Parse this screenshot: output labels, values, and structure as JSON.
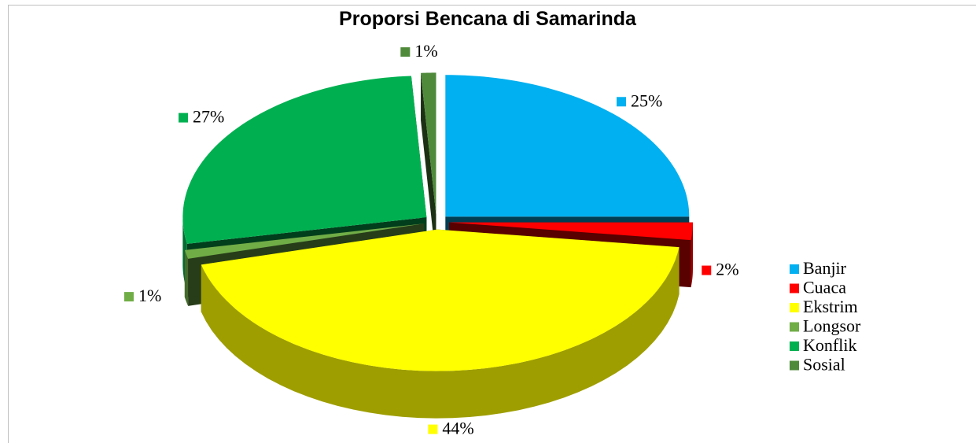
{
  "chart_data": {
    "type": "pie",
    "title": "Proporsi Bencana di Samarinda",
    "categories": [
      "Banjir",
      "Cuaca",
      "Ekstrim",
      "Longsor",
      "Konflik",
      "Sosial"
    ],
    "values": [
      25,
      2,
      44,
      1,
      27,
      1
    ],
    "value_labels": [
      "25%",
      "2%",
      "44%",
      "1%",
      "27%",
      "1%"
    ],
    "colors": [
      "#00b0f0",
      "#ff0000",
      "#ffff00",
      "#70ad47",
      "#00b050",
      "#4f8a3a"
    ],
    "legend": "right"
  }
}
